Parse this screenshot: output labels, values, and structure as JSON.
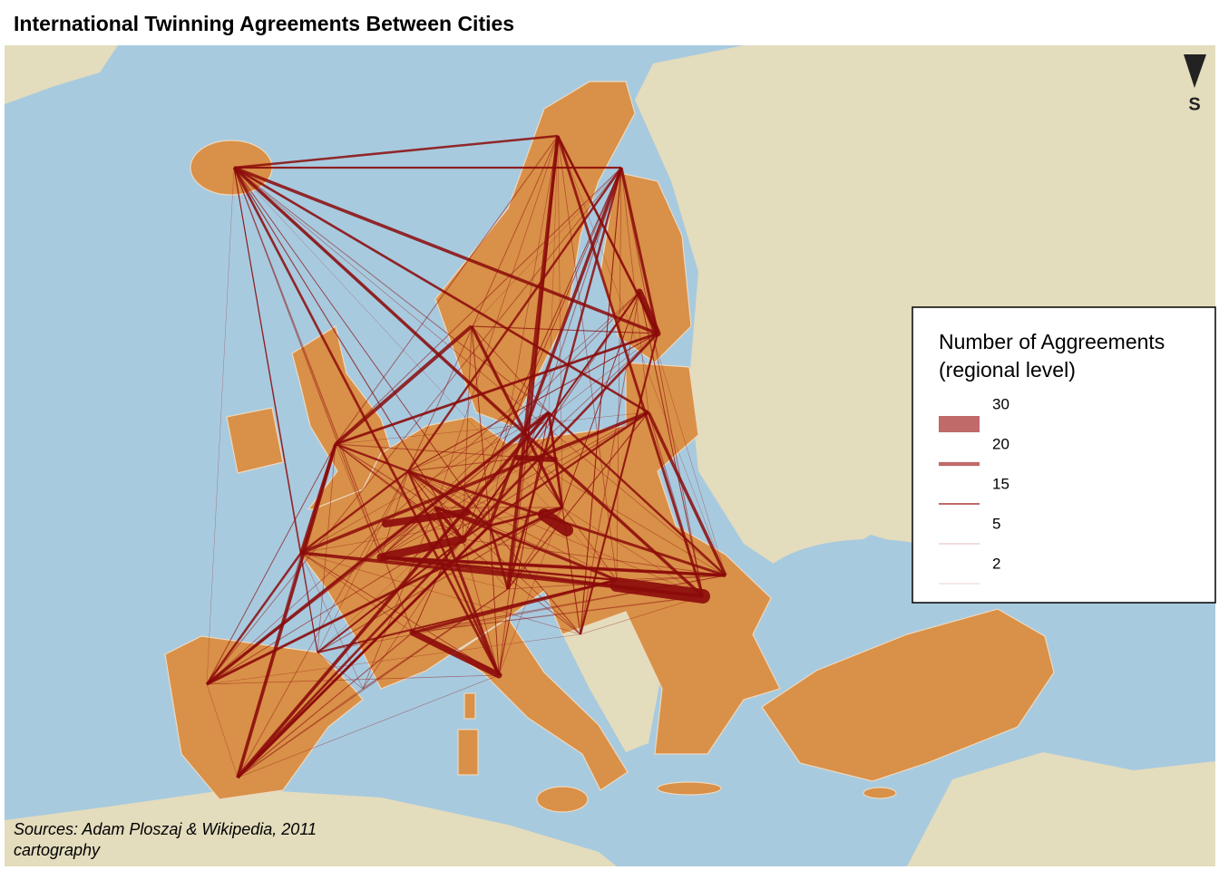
{
  "header": {
    "title": "International Twinning Agreements Between Cities"
  },
  "north_arrow": {
    "label": "S"
  },
  "legend": {
    "title": "Number of Aggreements",
    "subtitle": "(regional level)",
    "entries": [
      30,
      20,
      15,
      5,
      2
    ]
  },
  "footer": {
    "sources": "Sources: Adam Ploszaj & Wikipedia, 2011",
    "credit": "cartography"
  }
}
